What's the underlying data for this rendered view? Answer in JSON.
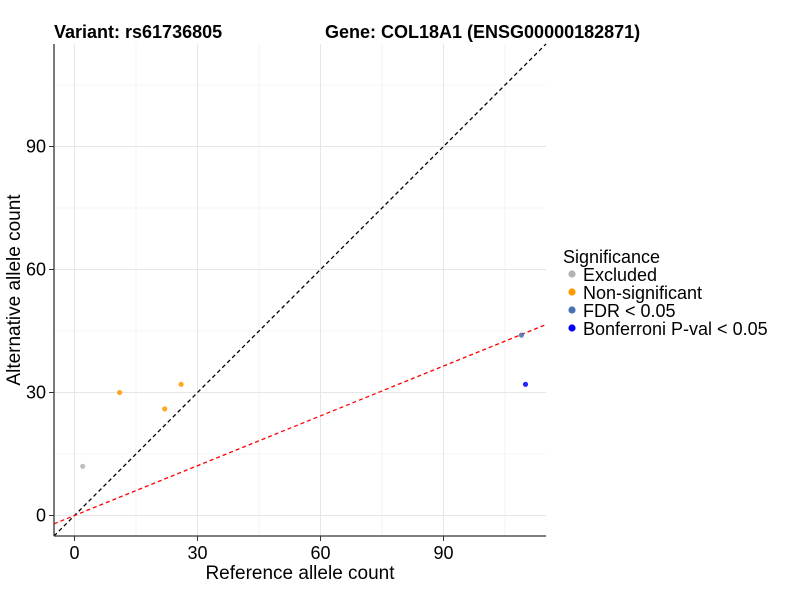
{
  "chart_data": {
    "type": "scatter",
    "title_left": "Variant: rs61736805",
    "title_right": "Gene: COL18A1 (ENSG00000182871)",
    "xlabel": "Reference allele count",
    "ylabel": "Alternative allele count",
    "xlim": [
      -5,
      115
    ],
    "ylim": [
      -5,
      115
    ],
    "xticks": [
      0,
      30,
      60,
      90
    ],
    "yticks": [
      0,
      30,
      60,
      90
    ],
    "grid": true,
    "legend": {
      "title": "Significance",
      "position": "right",
      "entries": [
        {
          "label": "Excluded",
          "color": "#b3b3b3"
        },
        {
          "label": "Non-significant",
          "color": "#ff9900"
        },
        {
          "label": "FDR < 0.05",
          "color": "#4472b3"
        },
        {
          "label": "Bonferroni P-val < 0.05",
          "color": "#0000ff"
        }
      ]
    },
    "points": [
      {
        "x": 2,
        "y": 12,
        "group": "Excluded"
      },
      {
        "x": 11,
        "y": 30,
        "group": "Non-significant"
      },
      {
        "x": 22,
        "y": 26,
        "group": "Non-significant"
      },
      {
        "x": 26,
        "y": 32,
        "group": "Non-significant"
      },
      {
        "x": 109,
        "y": 44,
        "group": "FDR < 0.05"
      },
      {
        "x": 110,
        "y": 32,
        "group": "Bonferroni P-val < 0.05"
      }
    ],
    "reference_lines": [
      {
        "name": "identity",
        "slope": 1,
        "intercept": 0,
        "color": "#000000",
        "dash": "dashed"
      },
      {
        "name": "expected-ratio",
        "slope": 0.405,
        "intercept": 0,
        "color": "#ff0000",
        "dash": "dashed"
      }
    ]
  }
}
